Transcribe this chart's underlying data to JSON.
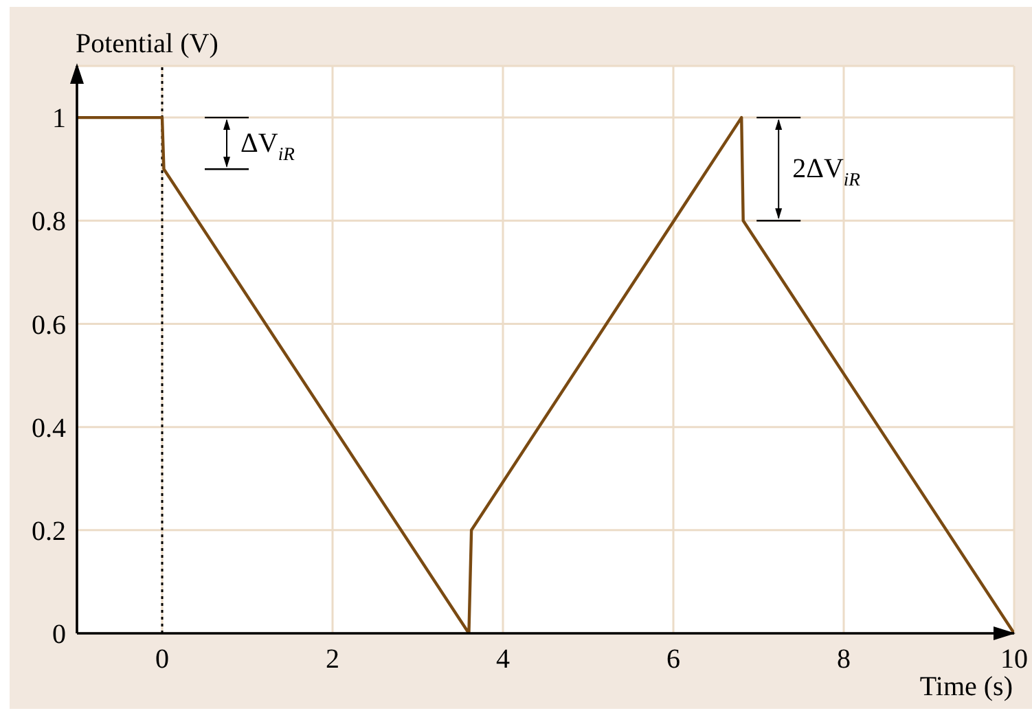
{
  "chart_data": {
    "type": "line",
    "xlabel": "Time (s)",
    "ylabel": "Potential (V)",
    "x": [
      -1,
      0,
      0.02,
      3.6,
      3.63,
      6.8,
      6.82,
      10
    ],
    "series": [
      {
        "color": "#7a4a12",
        "values": [
          1,
          1,
          0.9,
          0,
          0.2,
          1,
          0.8,
          0
        ]
      }
    ],
    "xlim": [
      -1,
      10
    ],
    "xticks": [
      0,
      2,
      4,
      6,
      8,
      10
    ],
    "ylim": [
      0,
      1.1
    ],
    "yticks": [
      0,
      0.2,
      0.4,
      0.6,
      0.8,
      1
    ],
    "grid": true,
    "ref_lines": [
      {
        "axis": "x",
        "value": 0,
        "color": "#000000",
        "line_style": "dotted"
      }
    ],
    "annotations": [
      "ΔV$_{iR}$",
      "2ΔV$_{iR}$"
    ]
  }
}
